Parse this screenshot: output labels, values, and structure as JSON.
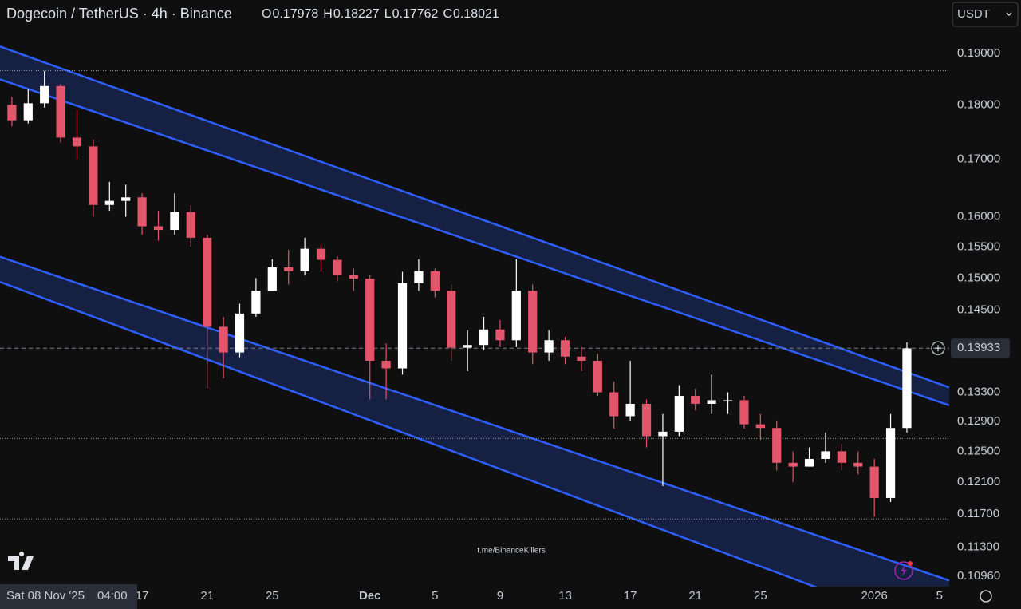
{
  "chart_data": {
    "type": "candlestick",
    "title": "Dogecoin / TetherUS · 4h · Binance",
    "ohlc": [
      {
        "key": "O",
        "text": "0.17978"
      },
      {
        "key": "H",
        "text": "0.18227"
      },
      {
        "key": "L",
        "text": "0.17762"
      },
      {
        "key": "C",
        "text": "0.18021"
      }
    ],
    "currency": "USDT",
    "watermark": "t.me/BinanceKillers",
    "crosshair_label": "Sat 08 Nov '25",
    "crosshair_time": "04:00",
    "log_scale": true,
    "up_color": "#ffffff",
    "down_color": "#e2556b",
    "channel_color": "#2f5fff",
    "x": [
      9,
      10,
      11,
      12,
      13,
      14,
      15,
      16,
      17,
      18,
      19,
      20,
      21,
      22,
      23,
      24,
      25,
      26,
      27,
      28,
      29,
      30,
      31,
      32,
      33,
      34,
      35,
      36,
      37,
      38,
      39,
      40,
      41,
      42,
      43,
      44,
      45,
      46,
      47,
      48,
      49,
      50,
      51,
      52,
      53,
      54,
      55,
      56,
      57,
      58,
      59,
      60,
      61,
      62,
      63,
      64
    ],
    "open": [
      0.18,
      0.1771,
      0.1803,
      0.1836,
      0.1739,
      0.1723,
      0.162,
      0.1627,
      0.1633,
      0.1584,
      0.1578,
      0.1608,
      0.1565,
      0.1425,
      0.1387,
      0.1445,
      0.148,
      0.1517,
      0.1511,
      0.1547,
      0.1529,
      0.1505,
      0.1499,
      0.1375,
      0.1364,
      0.1492,
      0.1511,
      0.148,
      0.1394,
      0.1398,
      0.1421,
      0.1405,
      0.148,
      0.1387,
      0.1405,
      0.1381,
      0.1375,
      0.133,
      0.1297,
      0.1314,
      0.127,
      0.1276,
      0.1325,
      0.1314,
      0.1319,
      0.1319,
      0.1286,
      0.1281,
      0.1235,
      0.123,
      0.124,
      0.125,
      0.1235,
      0.123,
      0.119,
      0.1281
    ],
    "high": [
      0.1815,
      0.183,
      0.1865,
      0.184,
      0.179,
      0.1735,
      0.166,
      0.1655,
      0.164,
      0.161,
      0.164,
      0.162,
      0.157,
      0.144,
      0.146,
      0.15,
      0.153,
      0.1545,
      0.1565,
      0.1555,
      0.1535,
      0.1515,
      0.1505,
      0.14,
      0.151,
      0.153,
      0.1515,
      0.149,
      0.142,
      0.144,
      0.1435,
      0.153,
      0.149,
      0.142,
      0.141,
      0.1395,
      0.1385,
      0.1345,
      0.1375,
      0.132,
      0.13,
      0.134,
      0.1335,
      0.1355,
      0.133,
      0.1325,
      0.13,
      0.129,
      0.125,
      0.1255,
      0.1275,
      0.126,
      0.125,
      0.124,
      0.13,
      0.1402
    ],
    "low": [
      0.176,
      0.1765,
      0.1795,
      0.173,
      0.17,
      0.16,
      0.161,
      0.16,
      0.157,
      0.156,
      0.157,
      0.155,
      0.1335,
      0.135,
      0.138,
      0.144,
      0.148,
      0.149,
      0.1505,
      0.151,
      0.1495,
      0.148,
      0.132,
      0.132,
      0.1355,
      0.148,
      0.147,
      0.1375,
      0.136,
      0.139,
      0.1395,
      0.1395,
      0.137,
      0.1375,
      0.137,
      0.136,
      0.1325,
      0.128,
      0.129,
      0.1255,
      0.1205,
      0.127,
      0.1305,
      0.13,
      0.13,
      0.128,
      0.1265,
      0.1225,
      0.121,
      0.123,
      0.1235,
      0.1225,
      0.122,
      0.1167,
      0.1185,
      0.1275
    ],
    "close": [
      0.1771,
      0.1803,
      0.1836,
      0.1739,
      0.1723,
      0.162,
      0.1627,
      0.1633,
      0.1584,
      0.1578,
      0.1608,
      0.1565,
      0.1425,
      0.1387,
      0.1445,
      0.148,
      0.1517,
      0.1511,
      0.1547,
      0.1529,
      0.1505,
      0.1499,
      0.1375,
      0.1364,
      0.1492,
      0.1511,
      0.148,
      0.1394,
      0.1398,
      0.1421,
      0.1405,
      0.148,
      0.1387,
      0.1405,
      0.1381,
      0.1375,
      0.133,
      0.1297,
      0.1314,
      0.127,
      0.1276,
      0.1325,
      0.1314,
      0.1319,
      0.1319,
      0.1286,
      0.1281,
      0.1235,
      0.123,
      0.124,
      0.125,
      0.1235,
      0.123,
      0.119,
      0.1281,
      0.1393
    ],
    "channels": [
      {
        "upper": [
          [
            8.27,
            0.1914
          ],
          [
            66.6,
            0.1337
          ]
        ],
        "lower": [
          [
            8.27,
            0.1849
          ],
          [
            66.6,
            0.1312
          ]
        ]
      },
      {
        "upper": [
          [
            8.27,
            0.1534
          ],
          [
            66.6,
            0.1091
          ]
        ],
        "lower": [
          [
            8.27,
            0.1494
          ],
          [
            66.6,
            0.1028
          ]
        ]
      }
    ],
    "levels": [
      0.1866,
      0.1267,
      0.1164
    ],
    "last_price": {
      "value": 0.13933,
      "label": "0.13933"
    },
    "xlim": [
      8.27,
      66.6
    ],
    "ylim": [
      0.1084,
      0.201
    ],
    "xticks": [
      {
        "value": 17,
        "label": "17"
      },
      {
        "value": 21,
        "label": "21"
      },
      {
        "value": 25,
        "label": "25"
      },
      {
        "value": 31,
        "label": "Dec"
      },
      {
        "value": 35,
        "label": "5"
      },
      {
        "value": 39,
        "label": "9"
      },
      {
        "value": 43,
        "label": "13"
      },
      {
        "value": 47,
        "label": "17"
      },
      {
        "value": 51,
        "label": "21"
      },
      {
        "value": 55,
        "label": "25"
      },
      {
        "value": 62,
        "label": "2026"
      },
      {
        "value": 66,
        "label": "5"
      }
    ],
    "yticks": [
      {
        "value": 0.19,
        "label": "0.19000"
      },
      {
        "value": 0.18,
        "label": "0.18000"
      },
      {
        "value": 0.17,
        "label": "0.17000"
      },
      {
        "value": 0.16,
        "label": "0.16000"
      },
      {
        "value": 0.155,
        "label": "0.15500"
      },
      {
        "value": 0.15,
        "label": "0.15000"
      },
      {
        "value": 0.145,
        "label": "0.14500"
      },
      {
        "value": 0.133,
        "label": "0.13300"
      },
      {
        "value": 0.129,
        "label": "0.12900"
      },
      {
        "value": 0.125,
        "label": "0.12500"
      },
      {
        "value": 0.121,
        "label": "0.12100"
      },
      {
        "value": 0.117,
        "label": "0.11700"
      },
      {
        "value": 0.113,
        "label": "0.11300"
      },
      {
        "value": 0.1096,
        "label": "0.10960"
      }
    ]
  }
}
